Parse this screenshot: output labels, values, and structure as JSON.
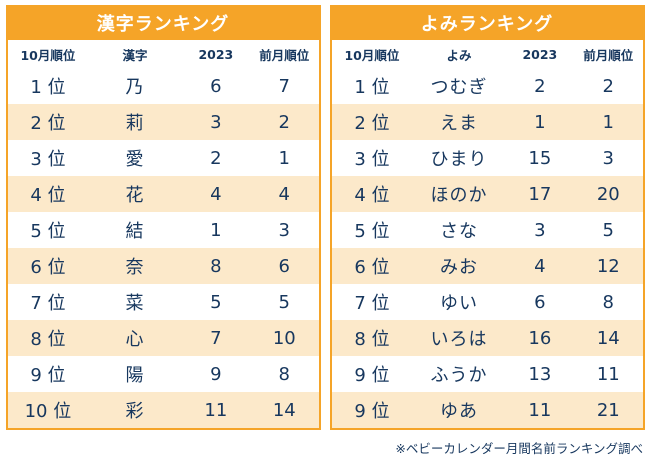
{
  "colors": {
    "header_bg": "#F5A428",
    "row_alt_bg": "#FCE9CA",
    "border": "#F5A428",
    "text": "#17375E",
    "title_text": "#FFFFFF"
  },
  "footer": {
    "note": "※ベビーカレンダー月間名前ランキング調べ"
  },
  "chart_data": [
    {
      "type": "table",
      "title": "漢字ランキング",
      "columns": [
        "10月順位",
        "漢字",
        "2023",
        "前月順位"
      ],
      "rows": [
        [
          "1 位",
          "乃",
          6,
          7
        ],
        [
          "2 位",
          "莉",
          3,
          2
        ],
        [
          "3 位",
          "愛",
          2,
          1
        ],
        [
          "4 位",
          "花",
          4,
          4
        ],
        [
          "5 位",
          "結",
          1,
          3
        ],
        [
          "6 位",
          "奈",
          8,
          6
        ],
        [
          "7 位",
          "菜",
          5,
          5
        ],
        [
          "8 位",
          "心",
          7,
          10
        ],
        [
          "9 位",
          "陽",
          9,
          8
        ],
        [
          "10 位",
          "彩",
          11,
          14
        ]
      ]
    },
    {
      "type": "table",
      "title": "よみランキング",
      "columns": [
        "10月順位",
        "よみ",
        "2023",
        "前月順位"
      ],
      "rows": [
        [
          "1 位",
          "つむぎ",
          2,
          2
        ],
        [
          "2 位",
          "えま",
          1,
          1
        ],
        [
          "3 位",
          "ひまり",
          15,
          3
        ],
        [
          "4 位",
          "ほのか",
          17,
          20
        ],
        [
          "5 位",
          "さな",
          3,
          5
        ],
        [
          "6 位",
          "みお",
          4,
          12
        ],
        [
          "7 位",
          "ゆい",
          6,
          8
        ],
        [
          "8 位",
          "いろは",
          16,
          14
        ],
        [
          "9 位",
          "ふうか",
          13,
          11
        ],
        [
          "9 位",
          "ゆあ",
          11,
          21
        ]
      ]
    }
  ]
}
